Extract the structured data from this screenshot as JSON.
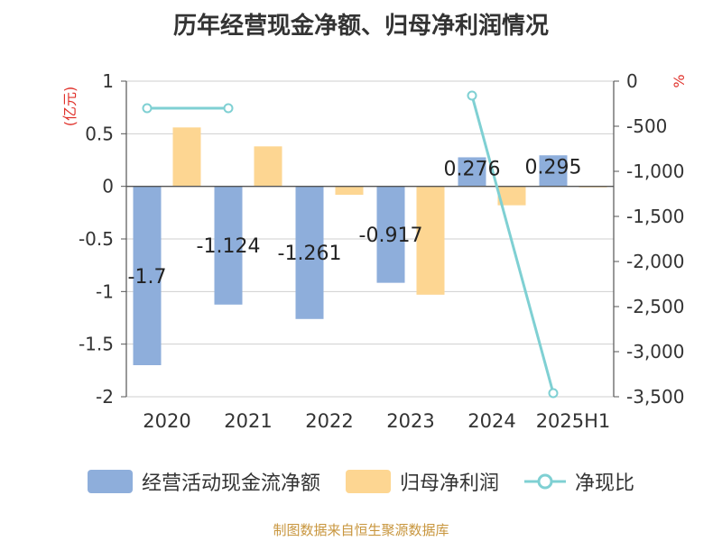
{
  "title": "历年经营现金净额、归母净利润情况",
  "chart_data": {
    "type": "bar",
    "title": "历年经营现金净额、归母净利润情况",
    "categories": [
      "2020",
      "2021",
      "2022",
      "2023",
      "2024",
      "2025H1"
    ],
    "y_left": {
      "label": "(亿元)",
      "range": [
        -2,
        1
      ],
      "ticks": [
        "1",
        "0.5",
        "0",
        "-0.5",
        "-1",
        "-1.5",
        "-2"
      ],
      "tick_values": [
        1,
        0.5,
        0,
        -0.5,
        -1,
        -1.5,
        -2
      ]
    },
    "y_right": {
      "label": "%",
      "range": [
        -3500,
        0
      ],
      "ticks": [
        "0",
        "-500",
        "-1,000",
        "-1,500",
        "-2,000",
        "-2,500",
        "-3,000",
        "-3,500"
      ],
      "tick_values": [
        0,
        -500,
        -1000,
        -1500,
        -2000,
        -2500,
        -3000,
        -3500
      ]
    },
    "series": [
      {
        "name": "经营活动现金流净额",
        "type": "bar",
        "axis": "left",
        "color": "#8eaedb",
        "values": [
          -1.7,
          -1.124,
          -1.261,
          -0.917,
          0.276,
          0.295
        ],
        "labels": [
          "-1.7",
          "-1.124",
          "-1.261",
          "-0.917",
          "0.276",
          "0.295"
        ]
      },
      {
        "name": "归母净利润",
        "type": "bar",
        "axis": "left",
        "color": "#fdd692",
        "values": [
          0.56,
          0.38,
          -0.08,
          -1.03,
          -0.18,
          -0.01
        ]
      },
      {
        "name": "净现比",
        "type": "line",
        "axis": "right",
        "color": "#7fd0d3",
        "values": [
          -300,
          -300,
          null,
          null,
          -160,
          -3460
        ]
      }
    ]
  },
  "source": "制图数据来自恒生聚源数据库"
}
